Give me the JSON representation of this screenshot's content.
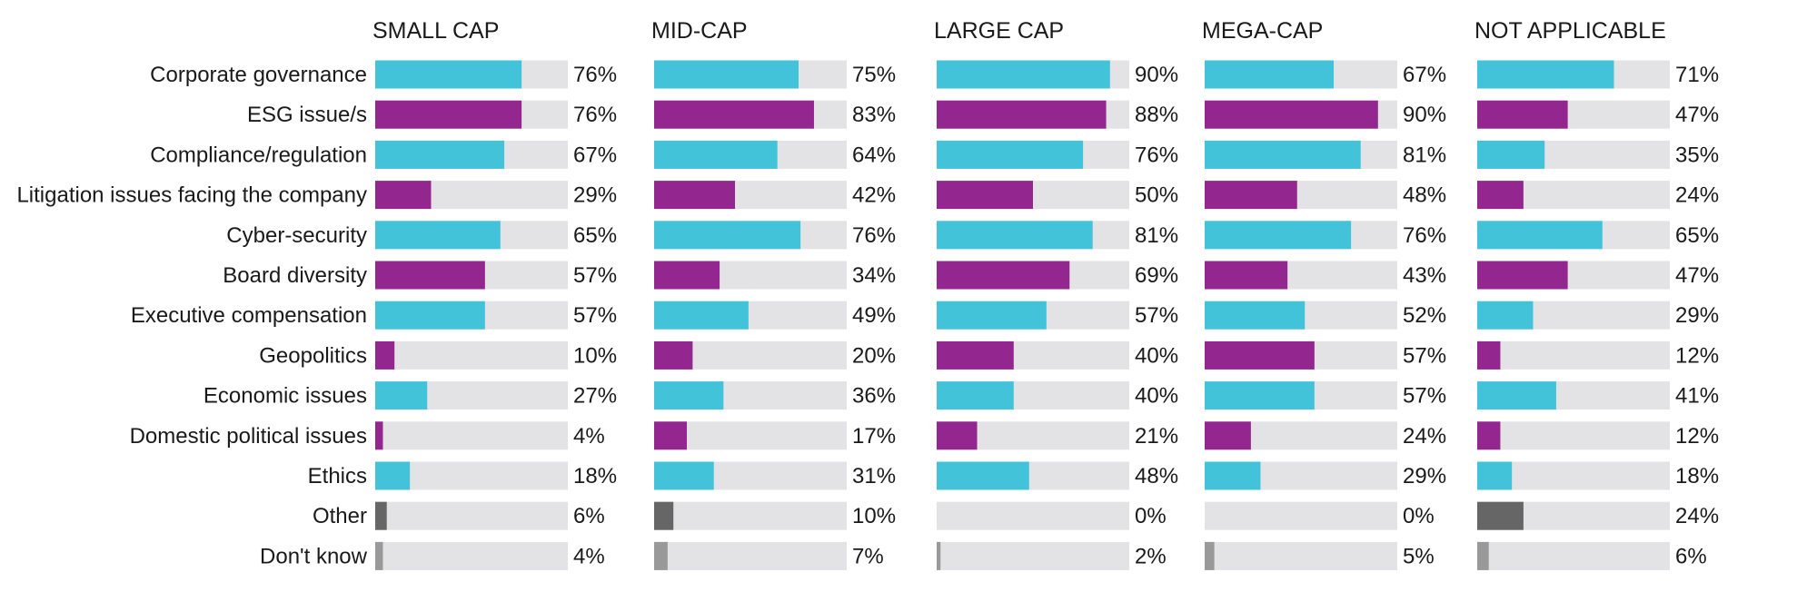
{
  "chart_data": {
    "type": "bar",
    "orientation": "horizontal",
    "categories": [
      "Corporate governance",
      "ESG issue/s",
      "Compliance/regulation",
      "Litigation issues facing the company",
      "Cyber-security",
      "Board diversity",
      "Executive compensation",
      "Geopolitics",
      "Economic issues",
      "Domestic political issues",
      "Ethics",
      "Other",
      "Don't know"
    ],
    "series": [
      {
        "name": "SMALL CAP",
        "values": [
          76,
          76,
          67,
          29,
          65,
          57,
          57,
          10,
          27,
          4,
          18,
          6,
          4
        ]
      },
      {
        "name": "MID-CAP",
        "values": [
          75,
          83,
          64,
          42,
          76,
          34,
          49,
          20,
          36,
          17,
          31,
          10,
          7
        ]
      },
      {
        "name": "LARGE CAP",
        "values": [
          90,
          88,
          76,
          50,
          81,
          69,
          57,
          40,
          40,
          21,
          48,
          0,
          2
        ]
      },
      {
        "name": "MEGA-CAP",
        "values": [
          67,
          90,
          81,
          48,
          76,
          43,
          52,
          57,
          57,
          24,
          29,
          0,
          5
        ]
      },
      {
        "name": "NOT APPLICABLE",
        "values": [
          71,
          47,
          35,
          24,
          65,
          47,
          29,
          12,
          41,
          12,
          18,
          24,
          6
        ]
      }
    ],
    "value_suffix": "%",
    "xlim": [
      0,
      100
    ],
    "grid": false,
    "colors": {
      "cyan": "#42c3da",
      "purple": "#93278f",
      "dark_gray": "#666666",
      "light_gray": "#999999",
      "track": "#e3e3e5"
    },
    "row_colors": [
      "cyan",
      "purple",
      "cyan",
      "purple",
      "cyan",
      "purple",
      "cyan",
      "purple",
      "cyan",
      "purple",
      "cyan",
      "dark_gray",
      "light_gray"
    ]
  }
}
